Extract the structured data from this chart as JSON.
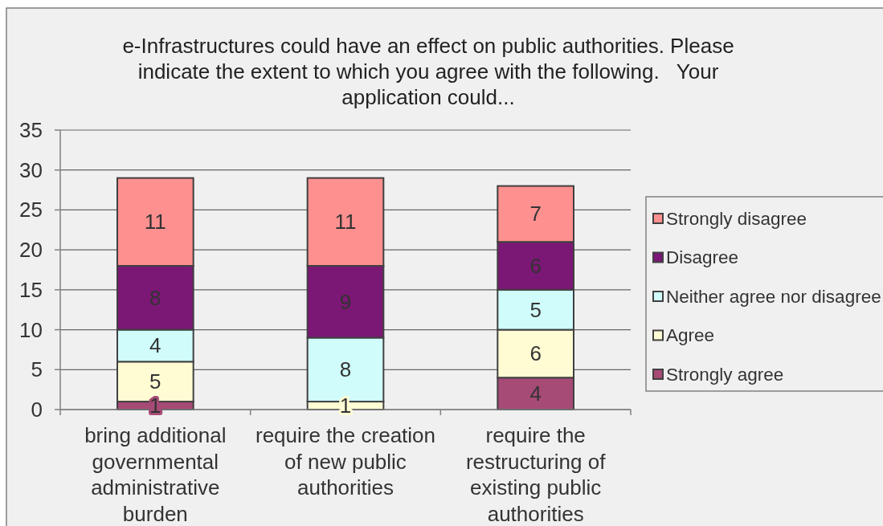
{
  "chart_data": {
    "type": "bar",
    "title": "e-Infrastructures could have an effect on public authorities. Please indicate the extent to which you agree with the following.   Your application could...",
    "categories": [
      "bring additional governmental administrative burden",
      "require the creation of new public authorities",
      "require the restructuring of existing public authorities"
    ],
    "series": [
      {
        "name": "Strongly agree",
        "color": "#a64a76",
        "values": [
          1,
          null,
          4
        ]
      },
      {
        "name": "Agree",
        "color": "#fffcd4",
        "values": [
          5,
          1,
          6
        ]
      },
      {
        "name": "Neither agree nor disagree",
        "color": "#d0fcfc",
        "values": [
          4,
          8,
          5
        ]
      },
      {
        "name": "Disagree",
        "color": "#7b1875",
        "values": [
          8,
          9,
          6
        ]
      },
      {
        "name": "Strongly disagree",
        "color": "#ff9090",
        "values": [
          11,
          11,
          7
        ]
      }
    ],
    "stacked": true,
    "ylim": [
      0,
      35
    ],
    "yticks": [
      0,
      5,
      10,
      15,
      20,
      25,
      30,
      35
    ],
    "grid": "y",
    "legend": "right",
    "data_labels": true
  }
}
